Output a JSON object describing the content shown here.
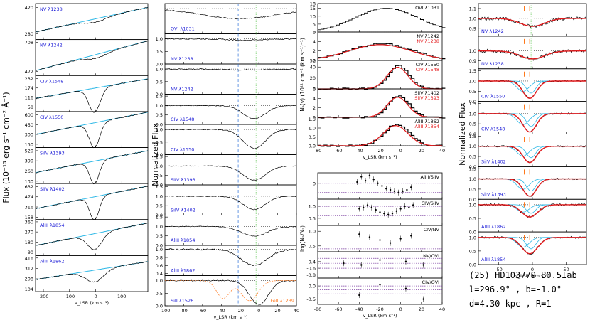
{
  "chart_data": [
    {
      "type": "line",
      "column": "flux",
      "ylabel": "Flux (10⁻¹³ erg s⁻¹ cm⁻² Å⁻¹)",
      "xlabel": "v_LSR (km s⁻¹)",
      "xlim": [
        -230,
        200
      ],
      "xticks": [
        "-200",
        "-100",
        "0",
        "100"
      ],
      "panels": [
        {
          "label": "NV λ1238",
          "yticks": [
            "420",
            "280"
          ],
          "ylim": [
            250,
            440
          ],
          "continuum": [
            290,
            420
          ],
          "trough": {
            "center": 0,
            "depth": 0.05,
            "width": 40
          }
        },
        {
          "label": "NV λ1242",
          "yticks": [
            "708",
            "472"
          ],
          "ylim": [
            440,
            730
          ],
          "continuum": [
            480,
            720
          ],
          "trough": {
            "center": 0,
            "depth": 0.05,
            "width": 40
          }
        },
        {
          "label": "CIV λ1548",
          "yticks": [
            "232",
            "174",
            "116",
            "58"
          ],
          "ylim": [
            30,
            250
          ],
          "continuum": [
            110,
            230
          ],
          "trough": {
            "center": -5,
            "depth": 0.85,
            "width": 22
          }
        },
        {
          "label": "CIV λ1550",
          "yticks": [
            "600",
            "450",
            "300",
            "150"
          ],
          "ylim": [
            100,
            650
          ],
          "continuum": [
            300,
            640
          ],
          "trough": {
            "center": -5,
            "depth": 0.8,
            "width": 20
          }
        },
        {
          "label": "SiIV λ1393",
          "yticks": [
            "520",
            "390",
            "260",
            "130"
          ],
          "ylim": [
            100,
            560
          ],
          "continuum": [
            240,
            520
          ],
          "trough": {
            "center": -5,
            "depth": 0.75,
            "width": 18
          }
        },
        {
          "label": "SiIV λ1402",
          "yticks": [
            "632",
            "474",
            "316",
            "158"
          ],
          "ylim": [
            120,
            680
          ],
          "continuum": [
            290,
            640
          ],
          "trough": {
            "center": -5,
            "depth": 0.75,
            "width": 18
          }
        },
        {
          "label": "AlIII λ1854",
          "yticks": [
            "360",
            "270",
            "180",
            "90"
          ],
          "ylim": [
            60,
            380
          ],
          "continuum": [
            150,
            350
          ],
          "trough": {
            "center": -5,
            "depth": 0.55,
            "width": 28
          }
        },
        {
          "label": "AlIII λ1862",
          "yticks": [
            "416",
            "312",
            "208",
            "104"
          ],
          "ylim": [
            80,
            440
          ],
          "continuum": [
            200,
            380
          ],
          "trough": {
            "center": -5,
            "depth": 0.4,
            "width": 35
          }
        }
      ]
    },
    {
      "type": "line",
      "column": "normalized",
      "ylabel": "Normalized Flux",
      "xlabel": "v_LSR (km s⁻¹)",
      "xlim": [
        -100,
        40
      ],
      "xticks": [
        "-100",
        "-80",
        "-60",
        "-40",
        "-20",
        "0",
        "20",
        "40"
      ],
      "vlines": [
        -22,
        -3
      ],
      "panels": [
        {
          "label": "OVI λ1031",
          "yticks": [],
          "ylim": [
            0,
            1.2
          ],
          "profile": {
            "center": -20,
            "depth": 0.4,
            "width": 40
          }
        },
        {
          "label": "NV λ1238",
          "yticks": [
            "1.0",
            "0.5",
            "0.0"
          ],
          "ylim": [
            0,
            1.2
          ],
          "profile": {
            "center": -15,
            "depth": 0.05,
            "width": 20
          }
        },
        {
          "label": "NV λ1242",
          "yticks": [
            "1.0",
            "0.5",
            "0.0"
          ],
          "ylim": [
            0,
            1.2
          ],
          "profile": {
            "center": -15,
            "depth": 0.04,
            "width": 20
          }
        },
        {
          "label": "CIV λ1548",
          "yticks": [
            "1.5",
            "1.0",
            "0.5",
            "0.0"
          ],
          "ylim": [
            0,
            1.6
          ],
          "profile": {
            "center": -5,
            "depth": 0.7,
            "width": 12
          }
        },
        {
          "label": "CIV λ1550",
          "yticks": [
            "1.0",
            "0.5",
            "0.0"
          ],
          "ylim": [
            0,
            1.2
          ],
          "profile": {
            "center": -5,
            "depth": 0.75,
            "width": 12
          }
        },
        {
          "label": "SiIV λ1393",
          "yticks": [
            "1.5",
            "1.0",
            "0.5",
            "0.0"
          ],
          "ylim": [
            0,
            1.6
          ],
          "profile": {
            "center": -5,
            "depth": 0.75,
            "width": 12
          }
        },
        {
          "label": "SiIV λ1402",
          "yticks": [
            "1.5",
            "1.0",
            "0.5",
            "0.0"
          ],
          "ylim": [
            0,
            1.6
          ],
          "profile": {
            "center": -5,
            "depth": 0.7,
            "width": 12
          }
        },
        {
          "label": "AlIII λ1854",
          "yticks": [
            "1.5",
            "1.0",
            "0.5",
            "0.0"
          ],
          "ylim": [
            0,
            1.6
          ],
          "profile": {
            "center": -5,
            "depth": 0.5,
            "width": 14
          }
        },
        {
          "label": "AlIII λ1862",
          "yticks": [
            "1.0",
            "0.8",
            "0.6",
            "0.4"
          ],
          "ylim": [
            0.35,
            1.1
          ],
          "profile": {
            "center": -5,
            "depth": 0.4,
            "width": 14
          }
        },
        {
          "label": "SiII λ1526",
          "yticks": [
            "1.0",
            "0.5",
            "0.0"
          ],
          "ylim": [
            0,
            1.2
          ],
          "profile": {
            "center": 0,
            "depth": 0.95,
            "width": 10
          },
          "overlay_label": "FeII λ1239",
          "overlay_color": "#ff7f2a"
        }
      ]
    },
    {
      "type": "line",
      "column": "column_density",
      "ylabel": "Nₐ(v) (10¹¹ cm⁻² (km s⁻¹)⁻¹)",
      "xlabel": "v_LSR (km s⁻¹)",
      "xlim": [
        -80,
        40
      ],
      "xticks": [
        "-80",
        "-60",
        "-40",
        "-20",
        "0",
        "20",
        "40"
      ],
      "panels": [
        {
          "labels": [
            "OVI λ1031"
          ],
          "yticks": [
            "18",
            "15",
            "10",
            "5",
            "0"
          ],
          "ylim": [
            0,
            18
          ],
          "peak": {
            "center": -15,
            "amp": 15,
            "width": 30
          }
        },
        {
          "labels": [
            "NV λ1242",
            "NV λ1238"
          ],
          "yticks": [
            "6",
            "4",
            "2",
            "0"
          ],
          "ylim": [
            0,
            6
          ],
          "peak": {
            "center": -20,
            "amp": 3.5,
            "width": 30
          }
        },
        {
          "labels": [
            "CIV λ1550",
            "CIV λ1548"
          ],
          "yticks": [
            "52",
            "40",
            "20",
            "0"
          ],
          "ylim": [
            0,
            52
          ],
          "peak": {
            "center": -3,
            "amp": 42,
            "width": 10
          }
        },
        {
          "labels": [
            "SiIV λ1402",
            "SiIV λ1393"
          ],
          "yticks": [
            "6",
            "4",
            "2",
            "0"
          ],
          "ylim": [
            0,
            6
          ],
          "peak": {
            "center": -3,
            "amp": 4.5,
            "width": 10
          }
        },
        {
          "labels": [
            "AlIII λ1862",
            "AlIII λ1854"
          ],
          "yticks": [
            "1.5",
            "1.0",
            "0.5",
            "0.0"
          ],
          "ylim": [
            0,
            1.6
          ],
          "peak": {
            "center": -5,
            "amp": 1.2,
            "width": 12
          }
        }
      ]
    },
    {
      "type": "scatter",
      "column": "ratios",
      "ylabel": "log(Nₐ/Nₐ)",
      "xlabel": "v_LSR (km s⁻¹)",
      "xlim": [
        -80,
        40
      ],
      "xticks": [
        "-80",
        "-60",
        "-40",
        "-20",
        "0",
        "20",
        "40"
      ],
      "panels": [
        {
          "label": "AlIII/SiIV",
          "yticks": [
            "0"
          ],
          "ylim": [
            -1.2,
            0.8
          ],
          "lines": [
            0,
            -0.7
          ],
          "points": [
            [
              -42,
              0.1
            ],
            [
              -38,
              0.5
            ],
            [
              -34,
              0.2
            ],
            [
              -30,
              0.6
            ],
            [
              -26,
              0.3
            ],
            [
              -22,
              0.0
            ],
            [
              -18,
              -0.2
            ],
            [
              -14,
              -0.4
            ],
            [
              -10,
              -0.5
            ],
            [
              -6,
              -0.6
            ],
            [
              -2,
              -0.7
            ],
            [
              2,
              -0.6
            ],
            [
              6,
              -0.5
            ],
            [
              10,
              -0.3
            ]
          ]
        },
        {
          "label": "CIV/SiIV",
          "yticks": [
            "1.0",
            "0.5"
          ],
          "ylim": [
            0.2,
            1.3
          ],
          "lines": [
            1.0,
            0.6
          ],
          "points": [
            [
              -40,
              0.9
            ],
            [
              -36,
              0.95
            ],
            [
              -32,
              1.05
            ],
            [
              -28,
              0.95
            ],
            [
              -24,
              0.85
            ],
            [
              -20,
              0.75
            ],
            [
              -16,
              0.7
            ],
            [
              -12,
              0.65
            ],
            [
              -8,
              0.7
            ],
            [
              -4,
              0.8
            ],
            [
              0,
              0.9
            ],
            [
              4,
              1.0
            ],
            [
              8,
              0.95
            ],
            [
              12,
              1.05
            ]
          ]
        },
        {
          "label": "CIV/NV",
          "yticks": [
            "1.0",
            "0.5"
          ],
          "ylim": [
            0.3,
            1.2
          ],
          "lines": [
            0.6,
            0.4
          ],
          "points": [
            [
              -40,
              0.9
            ],
            [
              -30,
              0.8
            ],
            [
              -20,
              0.7
            ],
            [
              -10,
              0.6
            ],
            [
              0,
              0.75
            ],
            [
              10,
              0.85
            ]
          ]
        },
        {
          "label": "NV/OVI",
          "yticks": [
            "-0.4",
            "-0.6",
            "-0.8"
          ],
          "ylim": [
            -0.9,
            -0.1
          ],
          "lines": [
            -0.3,
            -0.45,
            -0.6
          ],
          "points": [
            [
              -55,
              -0.45
            ],
            [
              -38,
              -0.5
            ],
            [
              -20,
              -0.35
            ],
            [
              5,
              -0.4
            ],
            [
              22,
              -0.5
            ]
          ]
        },
        {
          "label": "CIV/OVI",
          "yticks": [
            "0.0",
            "-0.5"
          ],
          "ylim": [
            -0.7,
            0.3
          ],
          "lines": [
            0.0,
            -0.15,
            -0.3
          ],
          "points": [
            [
              -40,
              -0.35
            ],
            [
              -20,
              0.05
            ],
            [
              5,
              -0.1
            ],
            [
              22,
              -0.5
            ]
          ]
        }
      ]
    },
    {
      "type": "line",
      "column": "fits",
      "ylabel": "Normalized Flux",
      "xlabel": "v_LSR (km s⁻¹)",
      "xlim": [
        -80,
        80
      ],
      "xticks": [
        "-50",
        "0",
        "50"
      ],
      "markers": [
        -12,
        -4
      ],
      "panels": [
        {
          "label": "NV λ1242",
          "yticks": [
            "1.1",
            "1.0",
            "0.9"
          ],
          "ylim": [
            0.82,
            1.15
          ],
          "profile": {
            "center": 0,
            "depth": 0.08,
            "width": 18
          }
        },
        {
          "label": "NV λ1238",
          "yticks": [
            "1.0",
            "0.9"
          ],
          "ylim": [
            0.82,
            1.15
          ],
          "profile": {
            "center": 0,
            "depth": 0.08,
            "width": 18
          }
        },
        {
          "label": "CIV λ1550",
          "yticks": [
            "1.5",
            "1.0",
            "0.5",
            "0.0"
          ],
          "ylim": [
            0,
            1.6
          ],
          "profile": {
            "center": -4,
            "depth": 0.85,
            "width": 10
          }
        },
        {
          "label": "CIV λ1548",
          "yticks": [
            "1.5",
            "1.0",
            "0.5",
            "0.0"
          ],
          "ylim": [
            0,
            1.6
          ],
          "profile": {
            "center": -4,
            "depth": 0.9,
            "width": 10
          }
        },
        {
          "label": "SiIV λ1402",
          "yticks": [
            "1.5",
            "1.0",
            "0.5",
            "0.0"
          ],
          "ylim": [
            0,
            1.6
          ],
          "profile": {
            "center": -4,
            "depth": 0.8,
            "width": 10
          }
        },
        {
          "label": "SiIV λ1393",
          "yticks": [
            "1.5",
            "1.0",
            "0.5",
            "0.0"
          ],
          "ylim": [
            0,
            1.6
          ],
          "profile": {
            "center": -4,
            "depth": 0.85,
            "width": 10
          }
        },
        {
          "label": "AlIII λ1862",
          "yticks": [
            "1.0",
            "0.5",
            "0.0"
          ],
          "ylim": [
            0,
            1.2
          ],
          "profile": {
            "center": -4,
            "depth": 0.45,
            "width": 12
          }
        },
        {
          "label": "AlIII λ1854",
          "yticks": [
            "1.0",
            "0.5",
            "0.0"
          ],
          "ylim": [
            0,
            1.2
          ],
          "profile": {
            "center": -4,
            "depth": 0.6,
            "width": 12
          }
        }
      ]
    }
  ],
  "caption": {
    "line1": "(25) HD103779 B0.5Iab",
    "line2": "l=296.9° , b=-1.0°",
    "line3": "d=4.30 kpc , R=1"
  },
  "colors": {
    "data": "#000000",
    "fit": "#2ab7e6",
    "model": "#e31a1c",
    "label": "#1a1ad6",
    "marker": "#ff6a00",
    "dotted": "#7b3fa0",
    "dashed": "#2a6fd6",
    "vgreen": "#58c24a"
  }
}
